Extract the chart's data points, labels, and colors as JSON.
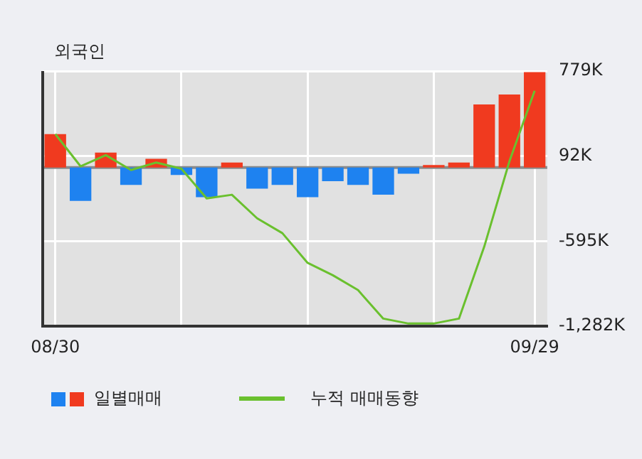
{
  "chart_data": {
    "type": "bar",
    "title": "외국인",
    "categories": [
      "08/30",
      null,
      null,
      null,
      null,
      null,
      null,
      null,
      null,
      null,
      null,
      null,
      null,
      null,
      null,
      null,
      null,
      null,
      null,
      "09/29"
    ],
    "series": [
      {
        "name": "일별매매",
        "colors": [
          "#f03a1f",
          "#1e82f0",
          "#f03a1f",
          "#1e82f0",
          "#f03a1f",
          "#1e82f0",
          "#1e82f0",
          "#f03a1f",
          "#1e82f0",
          "#1e82f0",
          "#1e82f0",
          "#1e82f0",
          "#1e82f0",
          "#1e82f0",
          "#1e82f0",
          "#f03a1f",
          "#f03a1f",
          "#f03a1f",
          "#f03a1f",
          "#f03a1f"
        ],
        "values": [
          270,
          -270,
          120,
          -140,
          70,
          -60,
          -240,
          40,
          -170,
          -140,
          -240,
          -110,
          -140,
          -220,
          -50,
          20,
          40,
          510,
          590,
          770
        ]
      },
      {
        "name": "누적 매매동향",
        "type": "line",
        "color": "#6ac02e",
        "values": [
          270,
          10,
          100,
          -20,
          40,
          -10,
          -250,
          -220,
          -410,
          -530,
          -770,
          -870,
          -990,
          -1220,
          -1260,
          -1260,
          -1220,
          -640,
          50,
          620
        ]
      }
    ],
    "ylim": [
      -1282,
      779
    ],
    "yticks": [
      {
        "value": 779,
        "label": "779K"
      },
      {
        "value": 92,
        "label": "92K"
      },
      {
        "value": -595,
        "label": "-595K"
      },
      {
        "value": -1282,
        "label": "-1,282K"
      }
    ],
    "ref_lines": [
      {
        "axis": "y",
        "value": 0,
        "color": "#8a8a8a"
      }
    ],
    "grid": true,
    "legend": "bottom",
    "marker": "none"
  }
}
